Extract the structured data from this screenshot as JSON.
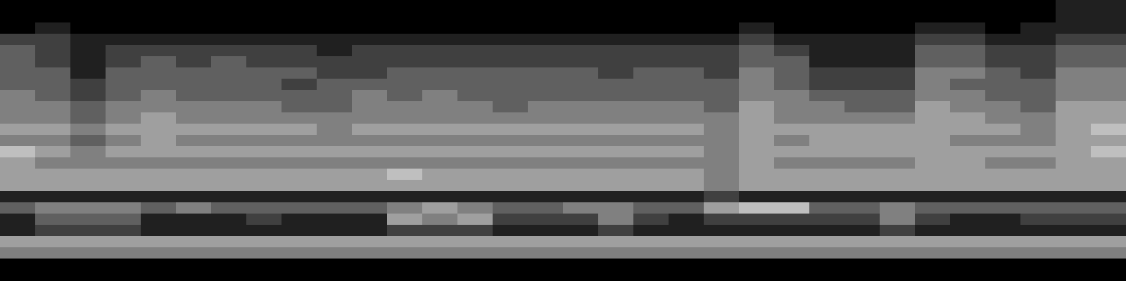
{
  "chart_data": {
    "type": "heatmap",
    "tick_labels": false,
    "color": "#ffffff",
    "zlim": [
      0,
      8
    ],
    "cells": [
      [
        0,
        0,
        0,
        0,
        0,
        0,
        0,
        0,
        0,
        0,
        0,
        0,
        0,
        0,
        0,
        0,
        0,
        0,
        0,
        0,
        0,
        0,
        0,
        0,
        0,
        0,
        0,
        0,
        0,
        0,
        1,
        1
      ],
      [
        0,
        0,
        0,
        0,
        0,
        0,
        0,
        0,
        0,
        0,
        0,
        0,
        0,
        0,
        0,
        0,
        0,
        0,
        0,
        0,
        0,
        0,
        0,
        0,
        0,
        0,
        0,
        0,
        0,
        0,
        1,
        1
      ],
      [
        0,
        1,
        0,
        0,
        0,
        0,
        0,
        0,
        0,
        0,
        0,
        0,
        0,
        0,
        0,
        0,
        0,
        0,
        0,
        0,
        0,
        1,
        0,
        0,
        0,
        0,
        1,
        1,
        0,
        1,
        1,
        1
      ],
      [
        2,
        2,
        1,
        1,
        1,
        1,
        1,
        1,
        1,
        1,
        1,
        1,
        1,
        1,
        1,
        1,
        1,
        1,
        1,
        1,
        1,
        2,
        1,
        1,
        1,
        1,
        2,
        2,
        1,
        1,
        2,
        2
      ],
      [
        3,
        2,
        1,
        2,
        2,
        2,
        2,
        2,
        2,
        1,
        2,
        2,
        2,
        2,
        2,
        2,
        2,
        2,
        2,
        2,
        2,
        3,
        2,
        1,
        1,
        1,
        3,
        3,
        2,
        2,
        3,
        3
      ],
      [
        3,
        2,
        1,
        2,
        3,
        2,
        3,
        2,
        2,
        2,
        2,
        2,
        2,
        2,
        2,
        2,
        2,
        2,
        2,
        2,
        2,
        3,
        3,
        1,
        1,
        1,
        3,
        3,
        2,
        2,
        3,
        3
      ],
      [
        3,
        3,
        1,
        3,
        3,
        3,
        3,
        3,
        3,
        2,
        2,
        3,
        3,
        3,
        3,
        3,
        3,
        2,
        3,
        3,
        2,
        4,
        3,
        2,
        2,
        2,
        4,
        4,
        3,
        2,
        4,
        4
      ],
      [
        3,
        3,
        2,
        3,
        3,
        3,
        3,
        3,
        2,
        3,
        3,
        3,
        3,
        3,
        3,
        3,
        3,
        3,
        3,
        3,
        3,
        4,
        3,
        2,
        2,
        2,
        4,
        3,
        3,
        3,
        4,
        4
      ],
      [
        4,
        3,
        2,
        3,
        4,
        3,
        3,
        3,
        3,
        3,
        4,
        3,
        4,
        3,
        3,
        3,
        3,
        3,
        3,
        3,
        3,
        4,
        4,
        3,
        3,
        3,
        4,
        4,
        3,
        3,
        4,
        4
      ],
      [
        4,
        4,
        3,
        4,
        4,
        4,
        4,
        4,
        3,
        3,
        4,
        4,
        4,
        4,
        3,
        4,
        4,
        4,
        4,
        4,
        3,
        5,
        4,
        4,
        3,
        3,
        5,
        4,
        4,
        3,
        5,
        5
      ],
      [
        4,
        4,
        3,
        4,
        5,
        4,
        4,
        4,
        4,
        4,
        4,
        4,
        4,
        4,
        4,
        4,
        4,
        4,
        4,
        4,
        4,
        5,
        4,
        4,
        4,
        4,
        5,
        5,
        4,
        4,
        5,
        5
      ],
      [
        5,
        5,
        4,
        5,
        5,
        5,
        5,
        5,
        5,
        4,
        5,
        5,
        5,
        5,
        5,
        5,
        5,
        5,
        5,
        5,
        4,
        5,
        5,
        5,
        5,
        5,
        5,
        5,
        5,
        4,
        5,
        6
      ],
      [
        4,
        4,
        3,
        4,
        5,
        4,
        4,
        4,
        4,
        4,
        4,
        4,
        4,
        4,
        4,
        4,
        4,
        4,
        4,
        4,
        4,
        5,
        4,
        5,
        5,
        5,
        5,
        4,
        4,
        4,
        5,
        5
      ],
      [
        6,
        5,
        4,
        5,
        5,
        5,
        5,
        5,
        5,
        5,
        5,
        5,
        5,
        5,
        5,
        5,
        5,
        5,
        5,
        5,
        4,
        5,
        5,
        5,
        5,
        5,
        5,
        5,
        5,
        5,
        5,
        6
      ],
      [
        5,
        4,
        4,
        4,
        4,
        4,
        4,
        4,
        4,
        4,
        4,
        4,
        4,
        4,
        4,
        4,
        4,
        4,
        4,
        4,
        4,
        5,
        4,
        4,
        4,
        4,
        5,
        5,
        4,
        4,
        5,
        5
      ],
      [
        5,
        5,
        5,
        5,
        5,
        5,
        5,
        5,
        5,
        5,
        5,
        6,
        5,
        5,
        5,
        5,
        5,
        5,
        5,
        5,
        4,
        5,
        5,
        5,
        5,
        5,
        5,
        5,
        5,
        5,
        5,
        5
      ],
      [
        5,
        5,
        5,
        5,
        5,
        5,
        5,
        5,
        5,
        5,
        5,
        5,
        5,
        5,
        5,
        5,
        5,
        5,
        5,
        5,
        4,
        5,
        5,
        5,
        5,
        5,
        5,
        5,
        5,
        5,
        5,
        5
      ],
      [
        1,
        1,
        1,
        1,
        1,
        1,
        1,
        1,
        1,
        1,
        1,
        1,
        1,
        1,
        1,
        1,
        1,
        1,
        1,
        1,
        2,
        1,
        1,
        1,
        1,
        1,
        1,
        1,
        1,
        1,
        1,
        1
      ],
      [
        3,
        4,
        4,
        4,
        3,
        4,
        3,
        3,
        3,
        3,
        3,
        4,
        5,
        4,
        3,
        3,
        4,
        4,
        3,
        3,
        5,
        6,
        6,
        3,
        3,
        4,
        3,
        3,
        3,
        3,
        3,
        3
      ],
      [
        1,
        3,
        3,
        3,
        1,
        1,
        1,
        2,
        1,
        1,
        1,
        5,
        4,
        5,
        2,
        2,
        2,
        4,
        2,
        1,
        2,
        2,
        2,
        2,
        2,
        4,
        2,
        1,
        1,
        2,
        2,
        2
      ],
      [
        1,
        2,
        2,
        2,
        1,
        1,
        1,
        1,
        1,
        1,
        1,
        2,
        2,
        2,
        1,
        1,
        1,
        2,
        1,
        1,
        1,
        1,
        1,
        1,
        1,
        2,
        1,
        1,
        1,
        1,
        1,
        1
      ],
      [
        5,
        5,
        5,
        5,
        5,
        5,
        5,
        5,
        5,
        5,
        5,
        5,
        5,
        5,
        5,
        5,
        5,
        5,
        5,
        5,
        5,
        5,
        5,
        5,
        5,
        5,
        5,
        5,
        5,
        5,
        5,
        5
      ],
      [
        4,
        4,
        4,
        4,
        4,
        4,
        4,
        4,
        4,
        4,
        4,
        4,
        4,
        4,
        4,
        4,
        4,
        4,
        4,
        4,
        4,
        4,
        4,
        4,
        4,
        4,
        4,
        4,
        4,
        4,
        4,
        4
      ],
      [
        0,
        0,
        0,
        0,
        0,
        0,
        0,
        0,
        0,
        0,
        0,
        0,
        0,
        0,
        0,
        0,
        0,
        0,
        0,
        0,
        0,
        0,
        0,
        0,
        0,
        0,
        0,
        0,
        0,
        0,
        0,
        0
      ],
      [
        0,
        0,
        0,
        0,
        0,
        0,
        0,
        0,
        0,
        0,
        0,
        0,
        0,
        0,
        0,
        0,
        0,
        0,
        0,
        0,
        0,
        0,
        0,
        0,
        0,
        0,
        0,
        0,
        0,
        0,
        0,
        0
      ]
    ]
  }
}
